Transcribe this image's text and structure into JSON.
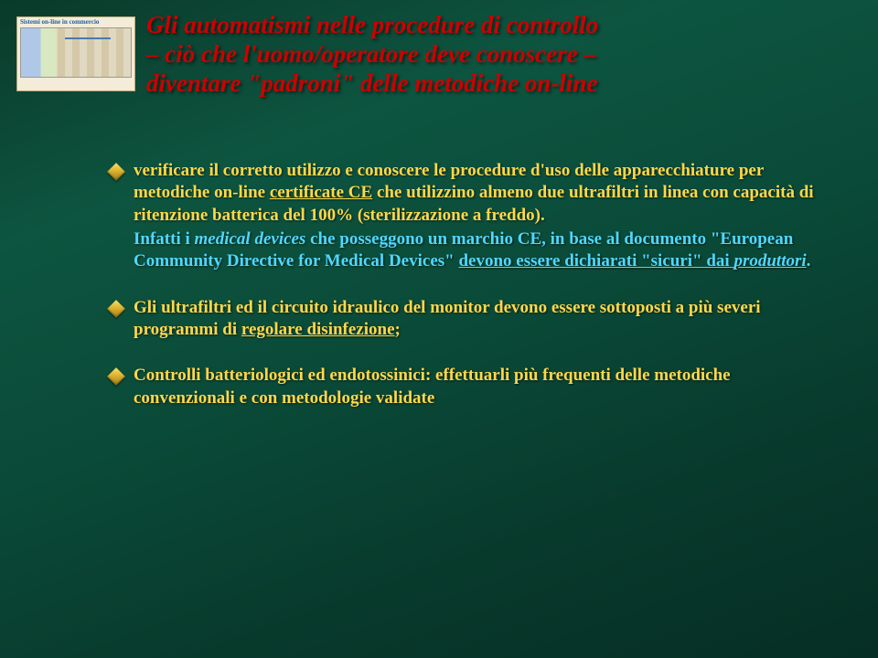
{
  "title": {
    "text_line1": "Gli automatismi nelle procedure di controllo",
    "text_line2": "– ciò che l'uomo/operatore deve conoscere –",
    "text_line3": "diventare \"padroni\" delle metodiche on-line",
    "font_size_pt": 27,
    "color": "#cc0000"
  },
  "thumbnail": {
    "caption": "Sistemi on-line in commercio"
  },
  "bullets": [
    {
      "main_html": "verificare il corretto utilizzo e conoscere le procedure d'uso delle apparecchiature per metodiche on-line <span class='ul'>certificate CE</span> che utilizzino almeno due ultrafiltri in linea con capacità di ritenzione batterica del 100% (sterilizzazione a freddo).",
      "sub_html": "Infatti i <span class='ital'>medical devices</span> che posseggono un marchio CE, in base al documento \"European Community Directive for Medical Devices\" <span class='ul'>devono essere dichiarati \"sicuri\" dai <span class='ital'>produttori</span></span>.",
      "font_size_pt": 19
    },
    {
      "main_html": "Gli ultrafiltri ed il circuito idraulico del monitor devono essere sottoposti a più severi programmi di <span class='ul'>regolare disinfezione</span>;",
      "font_size_pt": 19
    },
    {
      "main_html": "Controlli batteriologici ed endotossinici: effettuarli più frequenti delle metodiche convenzionali e con metodologie validate",
      "font_size_pt": 19
    }
  ],
  "colors": {
    "bullet_text": "#ffd84a",
    "sub_text": "#4fd8ff",
    "diamond_fill": "#ffe060",
    "background_gradient": [
      "#0a3a2a",
      "#0d5540",
      "#0a4a38",
      "#083a2c",
      "#062e24"
    ]
  }
}
